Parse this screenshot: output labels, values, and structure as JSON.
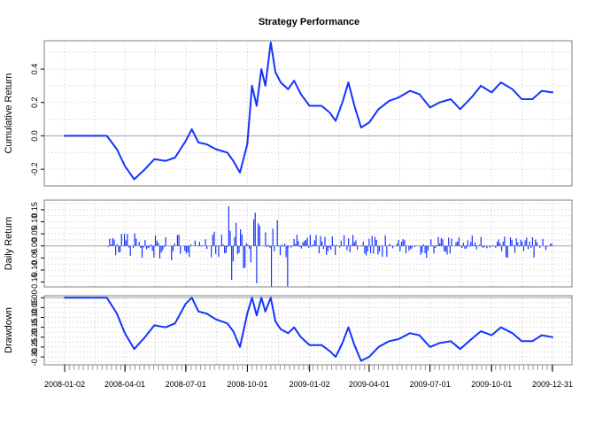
{
  "chart_data": {
    "title": "Strategy Performance",
    "type": "line",
    "x_range": [
      "2008-01-02",
      "2009-12-31"
    ],
    "x_tick_labels": [
      "2008-01-02",
      "2008-04-01",
      "2008-07-01",
      "2008-10-01",
      "2009-01-02",
      "2009-04-01",
      "2009-07-01",
      "2009-10-01",
      "2009-12-31"
    ],
    "grid": true,
    "colors": {
      "series": "#1533ff",
      "zero_line": "#a6a6a6",
      "grid": "#cccccc",
      "frame": "#7f7f7f"
    },
    "panels": [
      {
        "type": "line",
        "ylabel": "Cumulative Return",
        "ylim": [
          -0.3,
          0.57
        ],
        "yticks": [
          -0.2,
          0.0,
          0.2,
          0.4
        ],
        "ytick_labels": [
          "-0.2",
          "0.0",
          "0.2",
          "0.4"
        ],
        "x": [
          "2008-01-02",
          "2008-03-05",
          "2008-03-20",
          "2008-04-01",
          "2008-04-15",
          "2008-05-01",
          "2008-05-15",
          "2008-06-01",
          "2008-06-15",
          "2008-07-01",
          "2008-07-10",
          "2008-07-20",
          "2008-08-01",
          "2008-08-15",
          "2008-09-01",
          "2008-09-10",
          "2008-09-20",
          "2008-10-01",
          "2008-10-08",
          "2008-10-15",
          "2008-10-22",
          "2008-10-28",
          "2008-11-05",
          "2008-11-12",
          "2008-11-20",
          "2008-12-01",
          "2008-12-10",
          "2008-12-20",
          "2009-01-02",
          "2009-01-20",
          "2009-02-01",
          "2009-02-10",
          "2009-02-20",
          "2009-03-01",
          "2009-03-10",
          "2009-03-20",
          "2009-04-01",
          "2009-04-15",
          "2009-05-01",
          "2009-05-15",
          "2009-06-01",
          "2009-06-15",
          "2009-07-01",
          "2009-07-15",
          "2009-08-01",
          "2009-08-15",
          "2009-09-01",
          "2009-09-15",
          "2009-10-01",
          "2009-10-15",
          "2009-11-01",
          "2009-11-15",
          "2009-12-01",
          "2009-12-15",
          "2009-12-31"
        ],
        "values": [
          0.0,
          0.0,
          -0.08,
          -0.18,
          -0.26,
          -0.2,
          -0.14,
          -0.15,
          -0.13,
          -0.03,
          0.04,
          -0.04,
          -0.05,
          -0.08,
          -0.1,
          -0.15,
          -0.22,
          -0.05,
          0.3,
          0.18,
          0.4,
          0.3,
          0.56,
          0.38,
          0.32,
          0.28,
          0.33,
          0.25,
          0.18,
          0.18,
          0.14,
          0.09,
          0.2,
          0.32,
          0.18,
          0.05,
          0.08,
          0.16,
          0.21,
          0.23,
          0.27,
          0.25,
          0.17,
          0.2,
          0.22,
          0.16,
          0.23,
          0.3,
          0.26,
          0.32,
          0.28,
          0.22,
          0.22,
          0.27,
          0.26
        ]
      },
      {
        "type": "bar",
        "ylabel": "Daily Return",
        "ylim": [
          -0.17,
          0.19
        ],
        "yticks": [
          -0.15,
          -0.1,
          -0.05,
          0.0,
          0.05,
          0.1,
          0.15
        ],
        "ytick_labels": [
          "-0.15",
          "-0.10",
          "-0.05",
          "0.00",
          "0.05",
          "0.10",
          "0.15"
        ],
        "amplitude_profile": [
          {
            "from": "2008-01-02",
            "to": "2008-03-05",
            "max_abs": 0.0
          },
          {
            "from": "2008-03-05",
            "to": "2008-09-01",
            "max_abs": 0.06
          },
          {
            "from": "2008-09-01",
            "to": "2008-12-01",
            "max_abs": 0.17
          },
          {
            "from": "2008-12-01",
            "to": "2009-12-31",
            "max_abs": 0.05
          }
        ]
      },
      {
        "type": "line",
        "ylabel": "Drawdown",
        "ylim": [
          -0.34,
          0.01
        ],
        "yticks": [
          0.0,
          -0.05,
          -0.1,
          -0.15,
          -0.2,
          -0.25,
          -0.3
        ],
        "ytick_labels": [
          "0.00",
          "-0.05",
          "-0.10",
          "-0.15",
          "-0.20",
          "-0.25",
          "-0.30"
        ],
        "x": [
          "2008-01-02",
          "2008-03-05",
          "2008-03-20",
          "2008-04-01",
          "2008-04-15",
          "2008-05-01",
          "2008-05-15",
          "2008-06-01",
          "2008-06-15",
          "2008-07-01",
          "2008-07-10",
          "2008-07-20",
          "2008-08-01",
          "2008-08-15",
          "2008-09-01",
          "2008-09-10",
          "2008-09-20",
          "2008-10-01",
          "2008-10-08",
          "2008-10-15",
          "2008-10-22",
          "2008-10-28",
          "2008-11-05",
          "2008-11-12",
          "2008-11-20",
          "2008-12-01",
          "2008-12-10",
          "2008-12-20",
          "2009-01-02",
          "2009-01-20",
          "2009-02-01",
          "2009-02-10",
          "2009-02-20",
          "2009-03-01",
          "2009-03-10",
          "2009-03-20",
          "2009-04-01",
          "2009-04-15",
          "2009-05-01",
          "2009-05-15",
          "2009-06-01",
          "2009-06-15",
          "2009-07-01",
          "2009-07-15",
          "2009-08-01",
          "2009-08-15",
          "2009-09-01",
          "2009-09-15",
          "2009-10-01",
          "2009-10-15",
          "2009-11-01",
          "2009-11-15",
          "2009-12-01",
          "2009-12-15",
          "2009-12-31"
        ],
        "values": [
          0.0,
          0.0,
          -0.08,
          -0.18,
          -0.26,
          -0.2,
          -0.14,
          -0.15,
          -0.13,
          -0.03,
          0.0,
          -0.07,
          -0.08,
          -0.11,
          -0.13,
          -0.17,
          -0.25,
          -0.08,
          0.0,
          -0.09,
          0.0,
          -0.07,
          0.0,
          -0.12,
          -0.16,
          -0.18,
          -0.15,
          -0.2,
          -0.24,
          -0.24,
          -0.27,
          -0.3,
          -0.23,
          -0.15,
          -0.24,
          -0.32,
          -0.3,
          -0.25,
          -0.22,
          -0.21,
          -0.18,
          -0.19,
          -0.25,
          -0.23,
          -0.22,
          -0.26,
          -0.21,
          -0.17,
          -0.19,
          -0.15,
          -0.18,
          -0.22,
          -0.22,
          -0.19,
          -0.2
        ]
      }
    ]
  }
}
